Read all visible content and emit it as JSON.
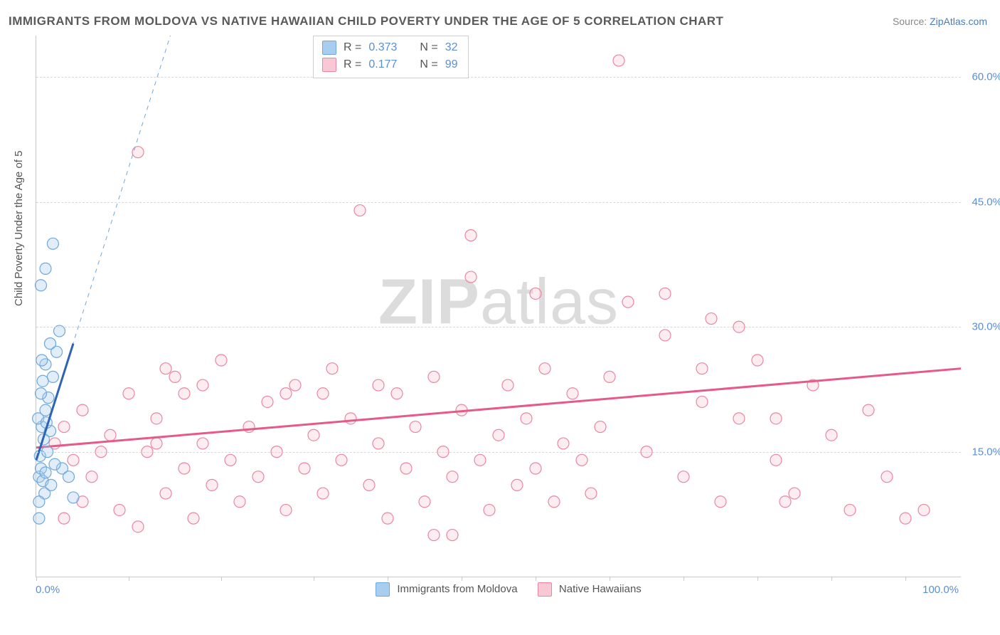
{
  "title": "IMMIGRANTS FROM MOLDOVA VS NATIVE HAWAIIAN CHILD POVERTY UNDER THE AGE OF 5 CORRELATION CHART",
  "source_label": "Source:",
  "source_site": "ZipAtlas.com",
  "ylabel": "Child Poverty Under the Age of 5",
  "watermark": "ZIPatlas",
  "chart": {
    "type": "scatter",
    "xlim": [
      0,
      100
    ],
    "ylim": [
      0,
      65
    ],
    "x_tick_positions": [
      0,
      10,
      20,
      30,
      38,
      46,
      54,
      62,
      70,
      78,
      86,
      94
    ],
    "x_tick_labels": {
      "min": "0.0%",
      "max": "100.0%"
    },
    "y_gridlines": [
      15,
      30,
      45,
      60
    ],
    "y_tick_labels": [
      "15.0%",
      "30.0%",
      "45.0%",
      "60.0%"
    ],
    "background_color": "#ffffff",
    "grid_color": "#d8d8d8",
    "axis_color": "#c9c9c9",
    "marker_radius": 8,
    "series": [
      {
        "name": "Immigrants from Moldova",
        "color_fill": "#a9cdee",
        "color_stroke": "#6fa8dc",
        "R": "0.373",
        "N": "32",
        "trend_line": {
          "x1": 0,
          "y1": 14,
          "x2": 4,
          "y2": 28,
          "color": "#2e64b5",
          "width": 3
        },
        "trend_dash": {
          "x1": 0,
          "y1": 14,
          "x2": 14.5,
          "y2": 65,
          "color": "#6fa8dc",
          "width": 1
        },
        "points": [
          [
            0.3,
            12
          ],
          [
            0.5,
            13
          ],
          [
            0.7,
            11.5
          ],
          [
            0.4,
            14.5
          ],
          [
            1.0,
            12.5
          ],
          [
            1.2,
            15
          ],
          [
            0.8,
            16.5
          ],
          [
            0.6,
            18
          ],
          [
            1.5,
            17.5
          ],
          [
            1.0,
            20
          ],
          [
            1.3,
            21.5
          ],
          [
            0.5,
            22
          ],
          [
            1.8,
            24
          ],
          [
            1.0,
            25.5
          ],
          [
            2.2,
            27
          ],
          [
            1.5,
            28
          ],
          [
            0.2,
            19
          ],
          [
            0.7,
            23.5
          ],
          [
            2.8,
            13
          ],
          [
            3.5,
            12
          ],
          [
            0.9,
            10
          ],
          [
            0.3,
            9
          ],
          [
            1.6,
            11
          ],
          [
            2.0,
            13.5
          ],
          [
            1.0,
            37
          ],
          [
            0.5,
            35
          ],
          [
            1.8,
            40
          ],
          [
            2.5,
            29.5
          ],
          [
            0.3,
            7
          ],
          [
            4.0,
            9.5
          ],
          [
            0.6,
            26
          ],
          [
            1.1,
            18.5
          ]
        ]
      },
      {
        "name": "Native Hawaiians",
        "color_fill": "#f8c8d4",
        "color_stroke": "#e986a4",
        "R": "0.177",
        "N": "99",
        "trend_line": {
          "x1": 0,
          "y1": 15.5,
          "x2": 100,
          "y2": 25,
          "color": "#e65a88",
          "width": 3
        },
        "points": [
          [
            2,
            16
          ],
          [
            3,
            18
          ],
          [
            4,
            14
          ],
          [
            5,
            20
          ],
          [
            6,
            12
          ],
          [
            7,
            15
          ],
          [
            8,
            17
          ],
          [
            9,
            8
          ],
          [
            10,
            22
          ],
          [
            11,
            6
          ],
          [
            12,
            15
          ],
          [
            13,
            19
          ],
          [
            14,
            10
          ],
          [
            15,
            24
          ],
          [
            16,
            13
          ],
          [
            17,
            7
          ],
          [
            18,
            16
          ],
          [
            19,
            11
          ],
          [
            20,
            26
          ],
          [
            21,
            14
          ],
          [
            22,
            9
          ],
          [
            23,
            18
          ],
          [
            24,
            12
          ],
          [
            25,
            21
          ],
          [
            26,
            15
          ],
          [
            27,
            8
          ],
          [
            28,
            23
          ],
          [
            29,
            13
          ],
          [
            30,
            17
          ],
          [
            31,
            10
          ],
          [
            32,
            25
          ],
          [
            33,
            14
          ],
          [
            34,
            19
          ],
          [
            35,
            44
          ],
          [
            36,
            11
          ],
          [
            37,
            16
          ],
          [
            38,
            7
          ],
          [
            39,
            22
          ],
          [
            40,
            13
          ],
          [
            41,
            18
          ],
          [
            42,
            9
          ],
          [
            43,
            24
          ],
          [
            44,
            15
          ],
          [
            45,
            12
          ],
          [
            46,
            20
          ],
          [
            47,
            41
          ],
          [
            48,
            14
          ],
          [
            49,
            8
          ],
          [
            50,
            17
          ],
          [
            51,
            23
          ],
          [
            52,
            11
          ],
          [
            53,
            19
          ],
          [
            54,
            13
          ],
          [
            55,
            25
          ],
          [
            56,
            9
          ],
          [
            57,
            16
          ],
          [
            58,
            22
          ],
          [
            59,
            14
          ],
          [
            60,
            10
          ],
          [
            61,
            18
          ],
          [
            62,
            24
          ],
          [
            64,
            33
          ],
          [
            66,
            15
          ],
          [
            68,
            34
          ],
          [
            70,
            12
          ],
          [
            72,
            21
          ],
          [
            74,
            9
          ],
          [
            76,
            19
          ],
          [
            78,
            26
          ],
          [
            80,
            14
          ],
          [
            82,
            10
          ],
          [
            84,
            23
          ],
          [
            86,
            17
          ],
          [
            88,
            8
          ],
          [
            90,
            20
          ],
          [
            92,
            12
          ],
          [
            94,
            7
          ],
          [
            96,
            8
          ],
          [
            11,
            51
          ],
          [
            47,
            36
          ],
          [
            63,
            62
          ],
          [
            68,
            29
          ],
          [
            72,
            25
          ],
          [
            76,
            30
          ],
          [
            80,
            19
          ],
          [
            3,
            7
          ],
          [
            5,
            9
          ],
          [
            45,
            5
          ],
          [
            43,
            5
          ],
          [
            37,
            23
          ],
          [
            31,
            22
          ],
          [
            27,
            22
          ],
          [
            16,
            22
          ],
          [
            18,
            23
          ],
          [
            14,
            25
          ],
          [
            13,
            16
          ],
          [
            81,
            9
          ],
          [
            73,
            31
          ],
          [
            54,
            34
          ]
        ]
      }
    ]
  },
  "colors": {
    "title": "#5a5a5a",
    "axis_label": "#555555",
    "tick": "#5a8fd6",
    "legend_text": "#555555"
  }
}
